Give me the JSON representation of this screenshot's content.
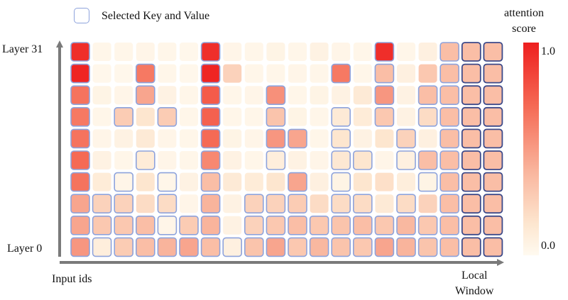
{
  "legend": {
    "label": "Selected Key and Value"
  },
  "y_axis": {
    "top_label": "Layer 31",
    "bottom_label": "Layer 0"
  },
  "x_axis": {
    "label": "Input ids",
    "end_label_line1": "Local",
    "end_label_line2": "Window"
  },
  "colorbar": {
    "title_line1": "attention",
    "title_line2": "score",
    "max_label": "1.0",
    "min_label": "0.0",
    "colors": [
      "#fffaf0",
      "#fde6cf",
      "#f9b49c",
      "#f56a55",
      "#ee1f1f"
    ]
  },
  "colors": {
    "selected_border": "#8ea3dc",
    "local_border": "#3c4a8a",
    "axis": "#7a7a7a"
  },
  "heatmap": {
    "rows": 10,
    "cols": 20,
    "local_window_cols": [
      18,
      19
    ],
    "scores": [
      [
        0.95,
        0.05,
        0.05,
        0.06,
        0.05,
        0.04,
        0.95,
        0.06,
        0.05,
        0.08,
        0.05,
        0.1,
        0.06,
        0.05,
        0.95,
        0.05,
        0.12,
        0.45,
        0.45,
        0.45
      ],
      [
        0.98,
        0.04,
        0.04,
        0.7,
        0.05,
        0.04,
        0.98,
        0.35,
        0.05,
        0.05,
        0.06,
        0.05,
        0.7,
        0.05,
        0.45,
        0.12,
        0.4,
        0.45,
        0.45,
        0.45
      ],
      [
        0.72,
        0.08,
        0.06,
        0.55,
        0.1,
        0.05,
        0.8,
        0.05,
        0.06,
        0.62,
        0.05,
        0.08,
        0.1,
        0.2,
        0.6,
        0.1,
        0.45,
        0.45,
        0.45,
        0.45
      ],
      [
        0.7,
        0.05,
        0.38,
        0.25,
        0.38,
        0.05,
        0.78,
        0.05,
        0.05,
        0.42,
        0.08,
        0.05,
        0.2,
        0.18,
        0.4,
        0.1,
        0.3,
        0.45,
        0.45,
        0.45
      ],
      [
        0.72,
        0.06,
        0.1,
        0.2,
        0.06,
        0.05,
        0.75,
        0.08,
        0.06,
        0.6,
        0.55,
        0.05,
        0.25,
        0.1,
        0.25,
        0.35,
        0.12,
        0.45,
        0.45,
        0.45
      ],
      [
        0.75,
        0.1,
        0.05,
        0.18,
        0.06,
        0.05,
        0.65,
        0.1,
        0.05,
        0.15,
        0.1,
        0.06,
        0.22,
        0.25,
        0.06,
        0.12,
        0.45,
        0.45,
        0.45,
        0.45
      ],
      [
        0.72,
        0.18,
        0.06,
        0.25,
        0.05,
        0.1,
        0.45,
        0.2,
        0.18,
        0.25,
        0.55,
        0.12,
        0.08,
        0.25,
        0.28,
        0.15,
        0.08,
        0.45,
        0.45,
        0.45
      ],
      [
        0.55,
        0.35,
        0.35,
        0.3,
        0.3,
        0.06,
        0.5,
        0.1,
        0.35,
        0.35,
        0.38,
        0.3,
        0.3,
        0.3,
        0.2,
        0.3,
        0.35,
        0.45,
        0.45,
        0.45
      ],
      [
        0.55,
        0.4,
        0.4,
        0.45,
        0.06,
        0.38,
        0.5,
        0.1,
        0.35,
        0.4,
        0.45,
        0.4,
        0.42,
        0.45,
        0.4,
        0.48,
        0.4,
        0.45,
        0.45,
        0.45
      ],
      [
        0.6,
        0.15,
        0.38,
        0.45,
        0.5,
        0.55,
        0.45,
        0.12,
        0.42,
        0.55,
        0.4,
        0.48,
        0.42,
        0.4,
        0.55,
        0.5,
        0.42,
        0.45,
        0.45,
        0.45
      ]
    ],
    "selected": [
      [
        1,
        0,
        0,
        0,
        0,
        0,
        1,
        0,
        0,
        0,
        0,
        0,
        0,
        0,
        1,
        0,
        0,
        1,
        1,
        1
      ],
      [
        1,
        0,
        0,
        1,
        0,
        0,
        1,
        0,
        0,
        0,
        0,
        0,
        1,
        0,
        1,
        0,
        0,
        1,
        1,
        1
      ],
      [
        1,
        0,
        0,
        1,
        0,
        0,
        1,
        0,
        0,
        1,
        0,
        0,
        0,
        0,
        1,
        0,
        1,
        1,
        1,
        1
      ],
      [
        1,
        0,
        1,
        0,
        1,
        0,
        1,
        0,
        0,
        1,
        0,
        0,
        1,
        0,
        1,
        0,
        1,
        1,
        1,
        1
      ],
      [
        1,
        0,
        0,
        0,
        0,
        0,
        1,
        0,
        0,
        1,
        1,
        0,
        1,
        0,
        0,
        1,
        0,
        1,
        1,
        1
      ],
      [
        1,
        0,
        0,
        1,
        0,
        0,
        1,
        0,
        0,
        1,
        0,
        0,
        1,
        1,
        0,
        1,
        1,
        1,
        1,
        1
      ],
      [
        1,
        0,
        1,
        0,
        1,
        0,
        1,
        0,
        0,
        0,
        1,
        0,
        1,
        0,
        0,
        0,
        1,
        1,
        1,
        1
      ],
      [
        1,
        1,
        1,
        0,
        1,
        0,
        1,
        0,
        1,
        1,
        1,
        0,
        1,
        1,
        0,
        1,
        0,
        1,
        1,
        1
      ],
      [
        1,
        1,
        1,
        1,
        1,
        1,
        1,
        0,
        1,
        1,
        1,
        1,
        1,
        1,
        1,
        1,
        1,
        1,
        1,
        1
      ],
      [
        1,
        1,
        1,
        1,
        1,
        1,
        1,
        1,
        1,
        1,
        1,
        1,
        1,
        1,
        1,
        1,
        1,
        1,
        1,
        1
      ]
    ]
  }
}
